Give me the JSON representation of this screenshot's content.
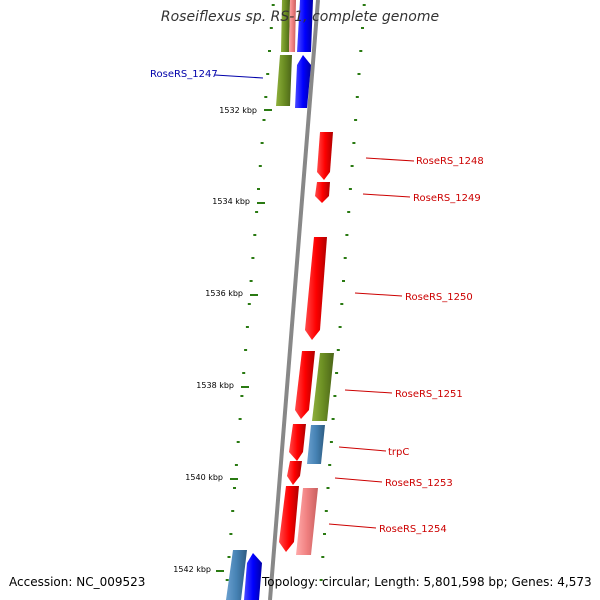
{
  "title": "Roseiflexus sp. RS-1, complete genome",
  "footer": {
    "accession": "Accession: NC_009523",
    "stats": "Topology: circular; Length: 5,801,598 bp; Genes: 4,573"
  },
  "colors": {
    "backbone": "#888888",
    "tick": "#2a7a12",
    "tick_label": "#000000",
    "cds_forward": "#0000ff",
    "cds_reverse": "#ff0000",
    "cds_reverse_light": "#f08080",
    "cds_green": "#6b8e23",
    "cds_steelblue": "#4682b4",
    "label_reverse": "#cc0000",
    "label_forward": "#0000aa"
  },
  "ticks": [
    {
      "label": "1532 kbp"
    },
    {
      "label": "1534 kbp"
    },
    {
      "label": "1536 kbp"
    },
    {
      "label": "1538 kbp"
    },
    {
      "label": "1540 kbp"
    },
    {
      "label": "1542 kbp"
    }
  ],
  "gene_labels": [
    {
      "name": "RoseRS_1247",
      "strand": "forward"
    },
    {
      "name": "RoseRS_1248",
      "strand": "reverse"
    },
    {
      "name": "RoseRS_1249",
      "strand": "reverse"
    },
    {
      "name": "RoseRS_1250",
      "strand": "reverse"
    },
    {
      "name": "RoseRS_1251",
      "strand": "reverse"
    },
    {
      "name": "trpC",
      "strand": "reverse"
    },
    {
      "name": "RoseRS_1253",
      "strand": "reverse"
    },
    {
      "name": "RoseRS_1254",
      "strand": "reverse"
    }
  ]
}
